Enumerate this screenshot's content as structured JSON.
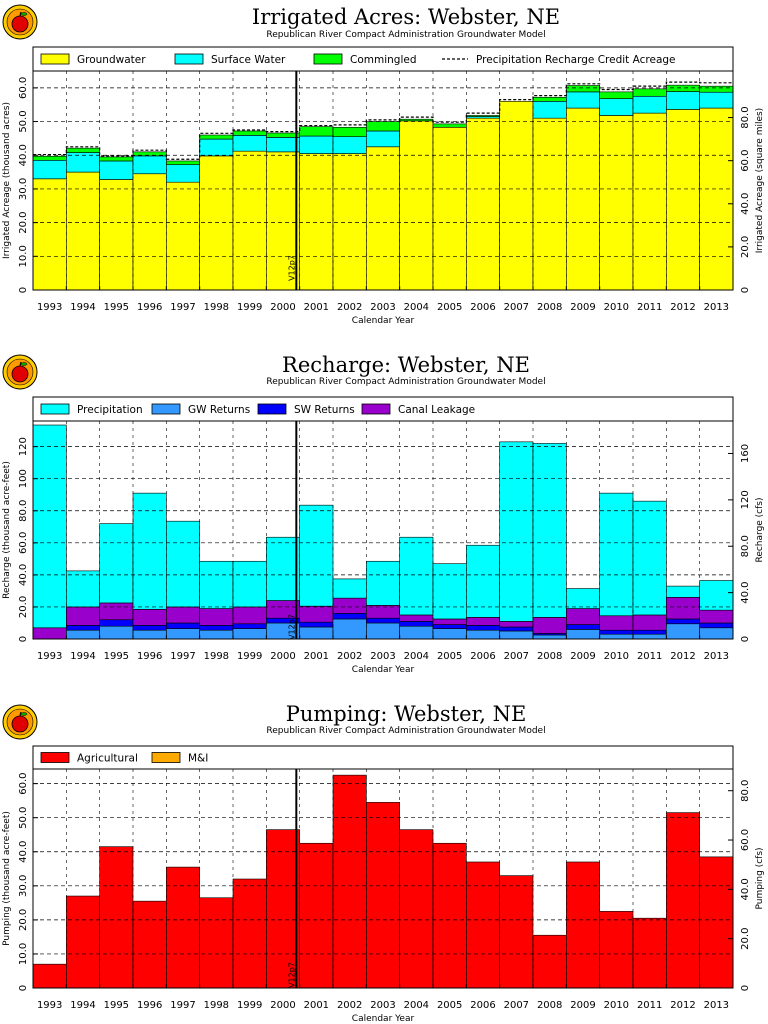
{
  "chart_data": [
    {
      "type": "bar",
      "stacked": true,
      "title": "Irrigated Acres: Webster, NE",
      "subtitle": "Republican River Compact Administration Groundwater Model",
      "xlabel": "Calendar Year",
      "ylabel": "Irrigated Acreage (thousand acres)",
      "y2label": "Irrigated Acreage (square miles)",
      "ylim": [
        0,
        65
      ],
      "y2lim": [
        0,
        101.6
      ],
      "yticks": [
        "0",
        "10.0",
        "20.0",
        "30.0",
        "40.0",
        "50.0",
        "60.0"
      ],
      "y2ticks": [
        "0",
        "20.0",
        "40.0",
        "60.0",
        "80.0"
      ],
      "categories": [
        "1993",
        "1994",
        "1995",
        "1996",
        "1997",
        "1998",
        "1999",
        "2000",
        "2001",
        "2002",
        "2003",
        "2004",
        "2005",
        "2006",
        "2007",
        "2008",
        "2009",
        "2010",
        "2011",
        "2012",
        "2013"
      ],
      "series": [
        {
          "name": "Groundwater",
          "color": "#ffff00",
          "values": [
            33.0,
            35.0,
            32.8,
            34.5,
            32.0,
            39.8,
            41.2,
            41.0,
            40.5,
            40.5,
            42.5,
            50.2,
            48.3,
            51.0,
            56.0,
            51.0,
            54.0,
            51.8,
            52.5,
            53.6,
            54.0
          ]
        },
        {
          "name": "Surface Water",
          "color": "#00ffff",
          "values": [
            5.5,
            5.8,
            5.5,
            5.3,
            5.2,
            5.0,
            4.7,
            4.3,
            5.2,
            5.0,
            4.7,
            0.0,
            0.0,
            0.5,
            0.0,
            5.0,
            4.8,
            5.0,
            5.0,
            5.3,
            4.7
          ]
        },
        {
          "name": "Commingled",
          "color": "#00ff00",
          "values": [
            1.2,
            1.3,
            1.2,
            1.2,
            1.1,
            1.2,
            1.3,
            1.3,
            2.8,
            2.8,
            2.8,
            0.5,
            1.0,
            0.3,
            0.0,
            1.2,
            1.9,
            2.0,
            2.2,
            1.9,
            1.8
          ]
        }
      ],
      "line_series": {
        "name": "Precipitation Recharge Credit Acreage",
        "values": [
          40.2,
          42.5,
          39.8,
          41.5,
          38.8,
          46.5,
          47.5,
          47.0,
          48.8,
          49.0,
          50.5,
          51.3,
          49.8,
          52.5,
          56.5,
          57.7,
          61.2,
          59.5,
          60.5,
          61.7,
          61.5
        ]
      },
      "reference_line": {
        "label": "V12p7",
        "x": "2000.9"
      },
      "legend_position": "top"
    },
    {
      "type": "bar",
      "stacked": true,
      "title": "Recharge: Webster, NE",
      "subtitle": "Republican River Compact Administration Groundwater Model",
      "xlabel": "Calendar Year",
      "ylabel": "Recharge (thousand acre-feet)",
      "y2label": "Recharge (cfs)",
      "ylim": [
        0,
        136
      ],
      "y2lim": [
        0,
        188
      ],
      "yticks": [
        "0",
        "20.0",
        "40.0",
        "60.0",
        "80.0",
        "100",
        "120"
      ],
      "y2ticks": [
        "0",
        "40.0",
        "80.0",
        "120",
        "160"
      ],
      "categories": [
        "1993",
        "1994",
        "1995",
        "1996",
        "1997",
        "1998",
        "1999",
        "2000",
        "2001",
        "2002",
        "2003",
        "2004",
        "2005",
        "2006",
        "2007",
        "2008",
        "2009",
        "2010",
        "2011",
        "2012",
        "2013"
      ],
      "series": [
        {
          "name": "GW Returns",
          "color": "#3399ff",
          "values": [
            0.0,
            5.5,
            8.0,
            5.5,
            6.5,
            5.5,
            6.5,
            10.0,
            7.5,
            12.5,
            10.0,
            8.0,
            6.5,
            5.5,
            5.0,
            2.5,
            6.0,
            3.0,
            3.0,
            9.5,
            7.0
          ]
        },
        {
          "name": "SW Returns",
          "color": "#0000ff",
          "values": [
            0.0,
            3.0,
            4.0,
            3.0,
            3.5,
            3.0,
            3.0,
            3.0,
            3.0,
            3.5,
            3.0,
            3.0,
            2.5,
            3.0,
            2.5,
            1.0,
            3.0,
            2.5,
            2.5,
            3.0,
            3.0
          ]
        },
        {
          "name": "Canal Leakage",
          "color": "#9900cc",
          "values": [
            7.0,
            11.5,
            10.5,
            10.0,
            10.0,
            10.5,
            10.5,
            11.0,
            10.0,
            9.5,
            8.0,
            4.0,
            3.5,
            5.0,
            3.5,
            10.0,
            10.0,
            9.0,
            9.5,
            13.5,
            8.0
          ]
        },
        {
          "name": "Precipitation",
          "color": "#00ffff",
          "values": [
            126.5,
            22.5,
            49.5,
            72.5,
            53.5,
            29.5,
            28.5,
            39.5,
            63.0,
            12.0,
            27.5,
            48.5,
            34.5,
            45.0,
            112.0,
            108.5,
            12.5,
            76.5,
            71.0,
            7.0,
            18.5
          ]
        }
      ],
      "reference_line": {
        "label": "V12p7",
        "x": "2000.9"
      },
      "legend_position": "top"
    },
    {
      "type": "bar",
      "stacked": true,
      "title": "Pumping: Webster, NE",
      "subtitle": "Republican River Compact Administration Groundwater Model",
      "xlabel": "Calendar Year",
      "ylabel": "Pumping (thousand acre-feet)",
      "y2label": "Pumping (cfs)",
      "ylim": [
        0,
        64.3
      ],
      "y2lim": [
        0,
        88.8
      ],
      "yticks": [
        "0",
        "10.0",
        "20.0",
        "30.0",
        "40.0",
        "50.0",
        "60.0"
      ],
      "y2ticks": [
        "0",
        "20.0",
        "40.0",
        "60.0",
        "80.0"
      ],
      "categories": [
        "1993",
        "1994",
        "1995",
        "1996",
        "1997",
        "1998",
        "1999",
        "2000",
        "2001",
        "2002",
        "2003",
        "2004",
        "2005",
        "2006",
        "2007",
        "2008",
        "2009",
        "2010",
        "2011",
        "2012",
        "2013"
      ],
      "series": [
        {
          "name": "Agricultural",
          "color": "#ff0000",
          "values": [
            7.0,
            27.0,
            41.5,
            25.5,
            35.5,
            26.5,
            32.0,
            46.5,
            42.5,
            62.5,
            54.5,
            46.5,
            42.5,
            37.0,
            33.0,
            15.5,
            37.0,
            22.5,
            20.5,
            51.5,
            38.5
          ]
        },
        {
          "name": "M&I",
          "color": "#ffaa00",
          "values": [
            0,
            0,
            0,
            0,
            0,
            0,
            0,
            0,
            0,
            0,
            0,
            0,
            0,
            0,
            0,
            0,
            0,
            0,
            0,
            0,
            0
          ]
        }
      ],
      "reference_line": {
        "label": "V12p7",
        "x": "2000.9"
      },
      "legend_position": "top"
    }
  ]
}
